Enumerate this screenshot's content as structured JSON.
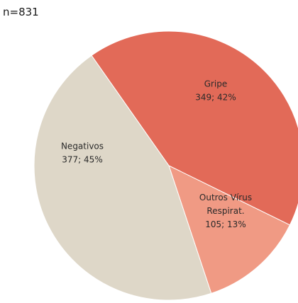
{
  "n_label": "n=831",
  "chart_data": {
    "type": "pie",
    "title": "",
    "slices": [
      {
        "label": "Gripe",
        "value": 349,
        "percent_label": "349; 42%",
        "color": "#e26a58"
      },
      {
        "label": "Outros Vírus Respirat.",
        "label_lines": [
          "Outros Vírus",
          "Respirat."
        ],
        "value": 105,
        "percent_label": "105; 13%",
        "color": "#f09a84"
      },
      {
        "label": "Negativos",
        "value": 377,
        "percent_label": "377; 45%",
        "color": "#ded7c8"
      }
    ]
  }
}
